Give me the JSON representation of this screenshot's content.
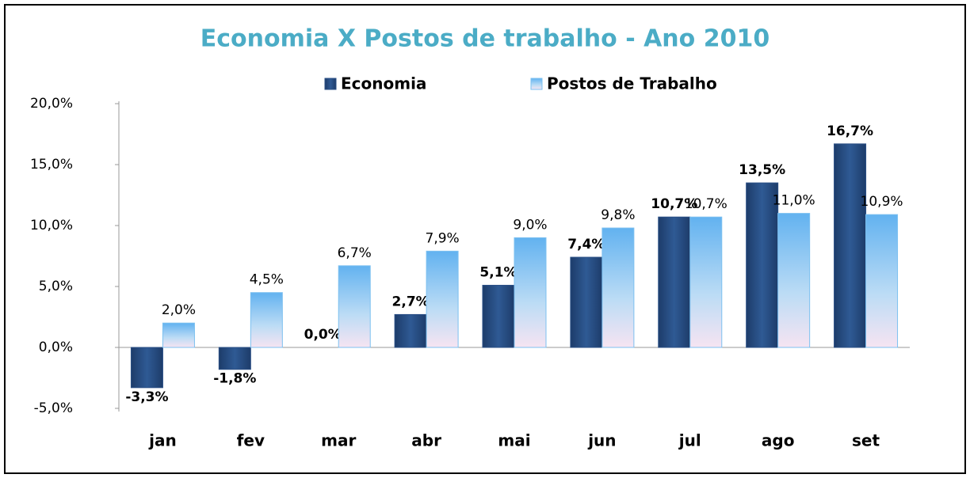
{
  "chart_data": {
    "type": "bar",
    "title": "Economia X Postos de trabalho - Ano 2010",
    "categories": [
      "jan",
      "fev",
      "mar",
      "abr",
      "mai",
      "jun",
      "jul",
      "ago",
      "set"
    ],
    "series": [
      {
        "name": "Economia",
        "color": "#2a4f86",
        "values": [
          -3.3,
          -1.8,
          0.0,
          2.7,
          5.1,
          7.4,
          10.7,
          13.5,
          16.7
        ],
        "value_labels": [
          "-3,3%",
          "-1,8%",
          "0,0%",
          "2,7%",
          "5,1%",
          "7,4%",
          "10,7%",
          "13,5%",
          "16,7%"
        ]
      },
      {
        "name": "Postos de Trabalho",
        "color": "#7cc0f0",
        "values": [
          2.0,
          4.5,
          6.7,
          7.9,
          9.0,
          9.8,
          10.7,
          11.0,
          10.9
        ],
        "value_labels": [
          "2,0%",
          "4,5%",
          "6,7%",
          "7,9%",
          "9,0%",
          "9,8%",
          "10,7%",
          "11,0%",
          "10,9%"
        ]
      }
    ],
    "ylim": [
      -5,
      20
    ],
    "yticks": [
      {
        "value": -5,
        "label": "-5,0%"
      },
      {
        "value": 0,
        "label": "0,0%"
      },
      {
        "value": 5,
        "label": "5,0%"
      },
      {
        "value": 10,
        "label": "10,0%"
      },
      {
        "value": 15,
        "label": "15,0%"
      },
      {
        "value": 20,
        "label": "20,0%"
      }
    ],
    "grid": false
  }
}
